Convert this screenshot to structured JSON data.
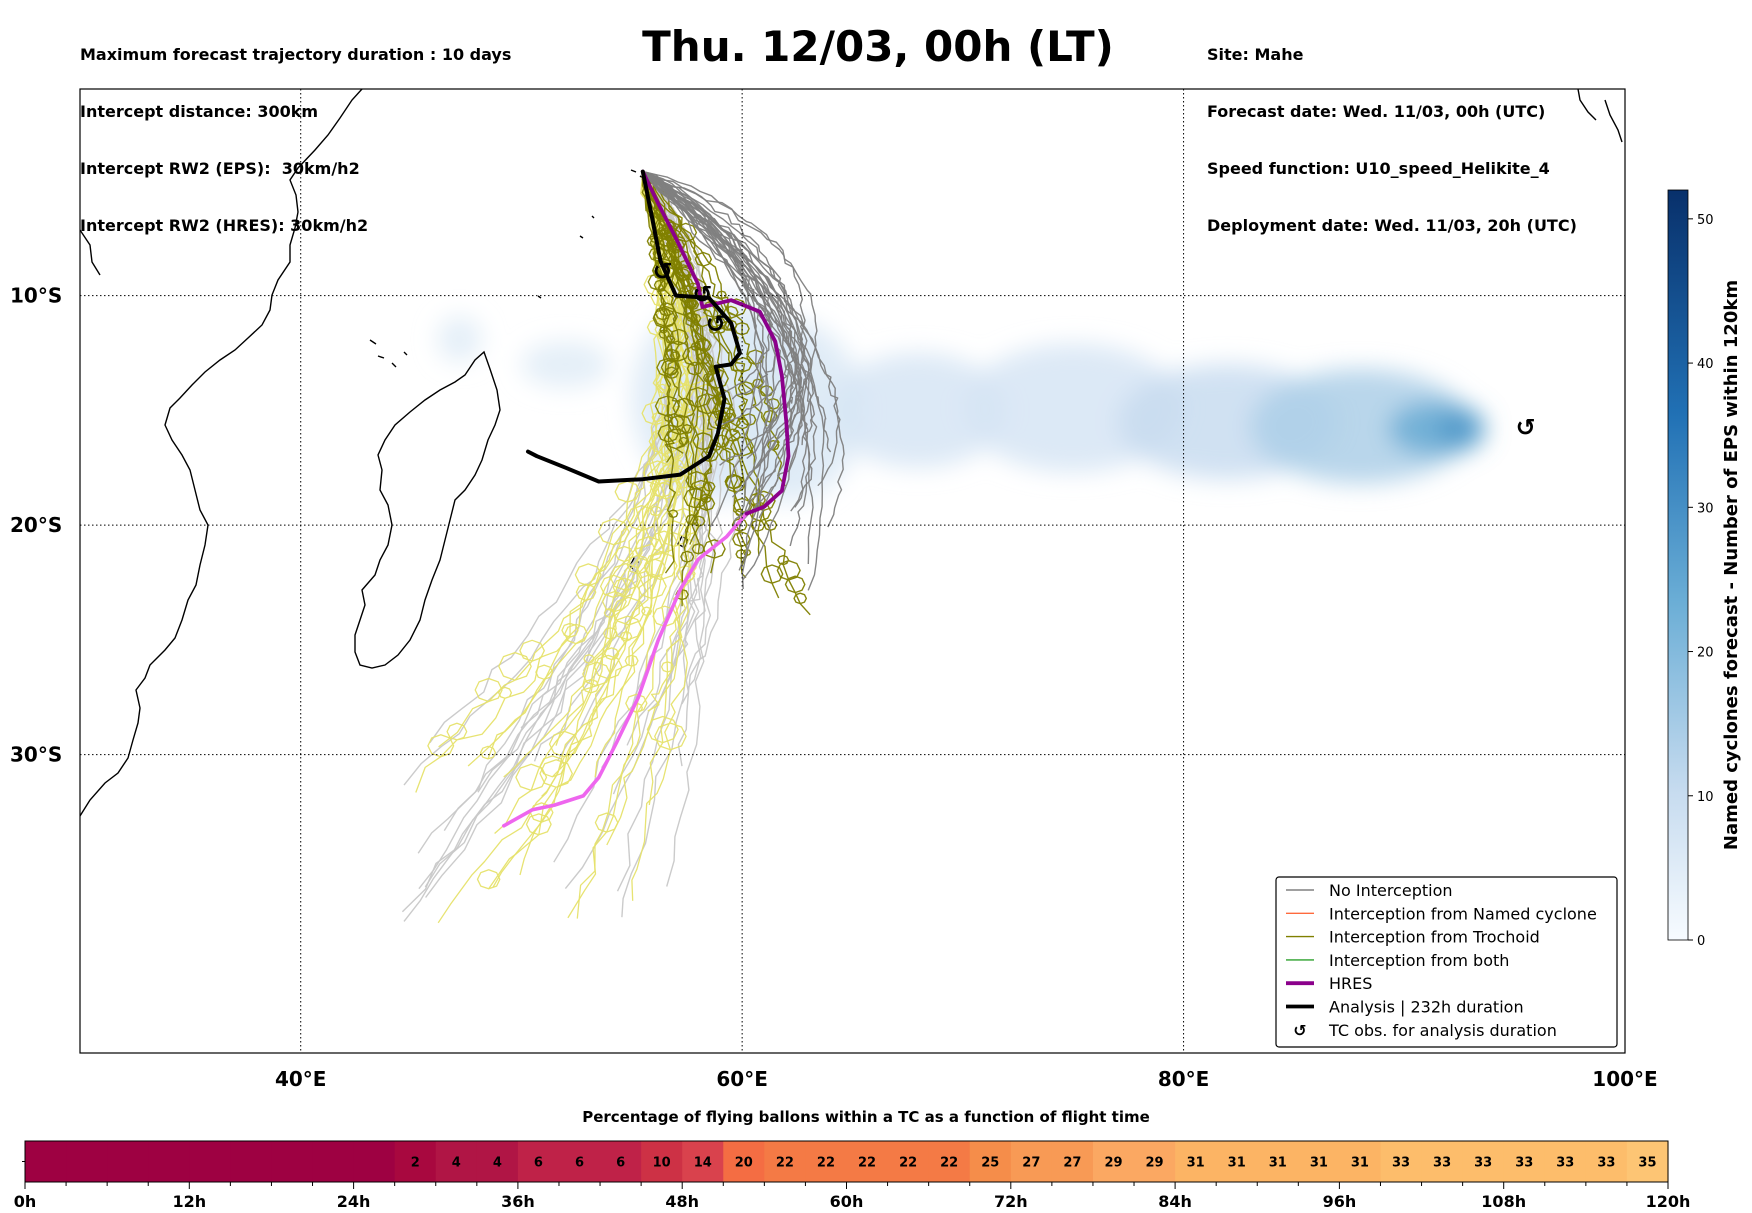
{
  "header": {
    "left_lines": [
      "Maximum forecast trajectory duration : 10 days",
      "Intercept distance: 300km",
      "Intercept RW2 (EPS):  30km/h2",
      "Intercept RW2 (HRES): 30km/h2"
    ],
    "title": "Thu. 12/03, 00h (LT)",
    "right_lines": [
      "Site: Mahe",
      "Forecast date: Wed. 11/03, 00h (UTC)",
      "Speed function: U10_speed_Helikite_4",
      "Deployment date: Wed. 11/03, 20h (UTC)"
    ]
  },
  "chart_data": [
    {
      "type": "map-trajectories",
      "title": "Thu. 12/03, 00h (LT)",
      "xlim": [
        30,
        100
      ],
      "ylim": [
        -43,
        -1
      ],
      "xticks": [
        {
          "value": 40,
          "label": "40°E"
        },
        {
          "value": 60,
          "label": "60°E"
        },
        {
          "value": 80,
          "label": "80°E"
        },
        {
          "value": 100,
          "label": "100°E"
        }
      ],
      "yticks": [
        {
          "value": -10,
          "label": "10°S"
        },
        {
          "value": -20,
          "label": "20°S"
        },
        {
          "value": -30,
          "label": "30°S"
        }
      ],
      "grid": true,
      "legend_position": "bottom-right",
      "legend": [
        {
          "label": "No Interception",
          "color": "#808080",
          "style": "thin"
        },
        {
          "label": "Interception from Named cyclone",
          "color": "#ff6a3d",
          "style": "thin"
        },
        {
          "label": "Interception from Trochoid",
          "color": "#808000",
          "style": "thin"
        },
        {
          "label": "Interception from both",
          "color": "#2ca02c",
          "style": "thin"
        },
        {
          "label": "HRES",
          "color": "#8b008b",
          "style": "thick"
        },
        {
          "label": "Analysis | 232h duration",
          "color": "#000000",
          "style": "thick"
        },
        {
          "label": "TC obs. for analysis duration",
          "color": "#000000",
          "style": "marker"
        }
      ],
      "launch_site": {
        "lon": 55.5,
        "lat": -4.6
      },
      "hres_track": [
        [
          55.5,
          -4.6
        ],
        [
          56.2,
          -6
        ],
        [
          57,
          -7.5
        ],
        [
          58,
          -9.5
        ],
        [
          58.2,
          -10.5
        ],
        [
          59.5,
          -10.2
        ],
        [
          60.8,
          -10.7
        ],
        [
          61.5,
          -12
        ],
        [
          61.8,
          -13.5
        ],
        [
          62,
          -15.5
        ],
        [
          62.1,
          -17
        ],
        [
          61.8,
          -18.5
        ],
        [
          61,
          -19.2
        ],
        [
          60.2,
          -19.5
        ]
      ],
      "hres_extension": [
        [
          60.2,
          -19.5
        ],
        [
          59.3,
          -20.5
        ],
        [
          58,
          -21.5
        ],
        [
          57.2,
          -22.8
        ],
        [
          56.2,
          -25
        ],
        [
          55.3,
          -27.5
        ],
        [
          54.3,
          -29.5
        ],
        [
          53.5,
          -31
        ],
        [
          52.8,
          -31.8
        ],
        [
          51.5,
          -32.2
        ],
        [
          50.5,
          -32.4
        ],
        [
          49.2,
          -33.1
        ]
      ],
      "analysis_track": [
        [
          55.5,
          -4.6
        ],
        [
          55.9,
          -6.5
        ],
        [
          56.3,
          -8.5
        ],
        [
          57,
          -10
        ],
        [
          58.5,
          -10.1
        ],
        [
          59.5,
          -11.2
        ],
        [
          59.9,
          -12.5
        ],
        [
          59.5,
          -13
        ],
        [
          58.8,
          -13.1
        ],
        [
          59.2,
          -14.5
        ],
        [
          58.9,
          -16
        ],
        [
          58.5,
          -17
        ],
        [
          57.2,
          -17.8
        ],
        [
          55.5,
          -18
        ],
        [
          53.5,
          -18.1
        ],
        [
          52,
          -17.5
        ],
        [
          50.7,
          -17
        ],
        [
          50.3,
          -16.8
        ]
      ],
      "tc_obs": [
        {
          "lon": 56.4,
          "lat": -8.9
        },
        {
          "lon": 58.2,
          "lat": -9.9
        },
        {
          "lon": 58.8,
          "lat": -11.2
        },
        {
          "lon": 95.5,
          "lat": -15.7
        }
      ],
      "density_colorbar": {
        "label": "Named cyclones forecast - Number of EPS within 120km",
        "range": [
          0,
          52
        ],
        "ticks": [
          0,
          10,
          20,
          30,
          40,
          50
        ],
        "colors": [
          "#f7fbff",
          "#08306b"
        ]
      },
      "density_blobs": [
        {
          "lon": 47.2,
          "lat": -11.9,
          "rx": 1,
          "ry": 1,
          "level": 5
        },
        {
          "lon": 52,
          "lat": -13,
          "rx": 2,
          "ry": 1,
          "level": 5
        },
        {
          "lon": 59,
          "lat": -14.5,
          "rx": 4,
          "ry": 4.5,
          "level": 6
        },
        {
          "lon": 62,
          "lat": -15,
          "rx": 3.5,
          "ry": 4,
          "level": 6
        },
        {
          "lon": 68,
          "lat": -15,
          "rx": 4,
          "ry": 2.5,
          "level": 7
        },
        {
          "lon": 75,
          "lat": -14.9,
          "rx": 5,
          "ry": 2.8,
          "level": 7
        },
        {
          "lon": 82,
          "lat": -15.5,
          "rx": 5,
          "ry": 2.5,
          "level": 10
        },
        {
          "lon": 88,
          "lat": -15.7,
          "rx": 5,
          "ry": 2.5,
          "level": 14
        },
        {
          "lon": 91.5,
          "lat": -15.8,
          "rx": 2.2,
          "ry": 1.2,
          "level": 24
        },
        {
          "lon": 92.5,
          "lat": -15.8,
          "rx": 1,
          "ry": 0.8,
          "level": 28
        }
      ]
    },
    {
      "type": "heatmap-bar",
      "title": "Percentage of flying ballons within a TC as a function of flight time",
      "x_range_hours": [
        0,
        120
      ],
      "xticks": [
        "0h",
        "12h",
        "24h",
        "36h",
        "48h",
        "60h",
        "72h",
        "84h",
        "96h",
        "108h",
        "120h"
      ],
      "bin_hours": 3,
      "values": [
        0,
        0,
        0,
        0,
        0,
        0,
        0,
        0,
        0,
        2,
        4,
        4,
        6,
        6,
        6,
        10,
        14,
        20,
        22,
        22,
        22,
        22,
        22,
        25,
        27,
        27,
        29,
        29,
        31,
        31,
        31,
        31,
        31,
        33,
        33,
        33,
        33,
        33,
        33,
        35
      ],
      "colors": {
        "0": "#9e0142",
        "2": "#a8083f",
        "4": "#b01545",
        "6": "#bf2248",
        "10": "#cd3145",
        "14": "#d9424d",
        "20": "#f46d43",
        "22": "#f47a45",
        "25": "#f58d4a",
        "27": "#f89a55",
        "29": "#fba862",
        "31": "#fcb464",
        "33": "#fdbd6b",
        "35": "#fdc574"
      }
    }
  ]
}
